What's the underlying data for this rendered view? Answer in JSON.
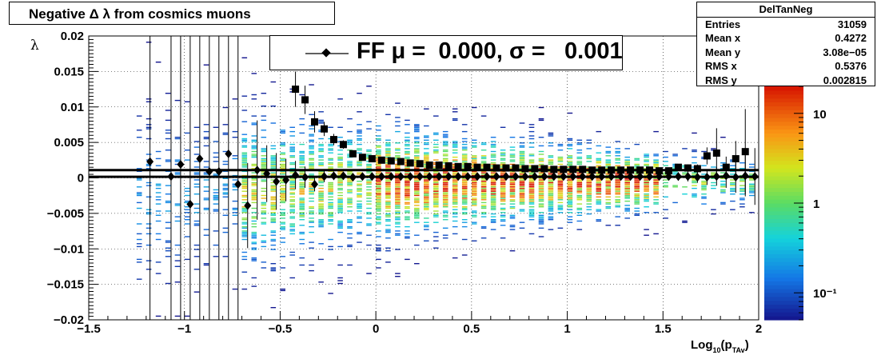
{
  "chart_data": {
    "type": "scatter",
    "title": "Negative Δ λ from cosmics muons",
    "xlabel": "Log10(pTAv)",
    "xlabel_parts": {
      "base": "Log",
      "sub1": "10",
      "mid": "(p",
      "sub2": "TAv",
      "end": ")"
    },
    "ylabel": "λ",
    "xlim": [
      -1.5,
      2.0
    ],
    "ylim": [
      -0.02,
      0.02
    ],
    "grid": true,
    "x_ticks": [
      "−1.5",
      "−1",
      "−0.5",
      "0",
      "0.5",
      "1",
      "1.5",
      "2"
    ],
    "x_tick_values": [
      -1.5,
      -1,
      -0.5,
      0,
      0.5,
      1,
      1.5,
      2
    ],
    "y_ticks": [
      "−0.02",
      "−0.015",
      "−0.01",
      "−0.005",
      "0",
      "0.005",
      "0.01",
      "0.015",
      "0.02"
    ],
    "y_tick_values": [
      -0.02,
      -0.015,
      -0.01,
      -0.005,
      0,
      0.005,
      0.01,
      0.015,
      0.02
    ],
    "colorbar": {
      "scale": "log",
      "range": [
        0.05,
        20
      ],
      "labels": [
        "10",
        "1",
        "10⁻¹"
      ],
      "label_values": [
        10,
        1,
        0.1
      ]
    },
    "fit_lines": [
      0.0011,
      0.00015
    ],
    "series": [
      {
        "name": "FF",
        "marker": "diamond",
        "x": [
          -1.18,
          -1.07,
          -1.02,
          -0.97,
          -0.92,
          -0.87,
          -0.82,
          -0.77,
          -0.72,
          -0.67,
          -0.62,
          -0.57,
          -0.52,
          -0.47,
          -0.42,
          -0.37,
          -0.32,
          -0.27,
          -0.22,
          -0.17,
          -0.12,
          -0.07,
          -0.02,
          0.03,
          0.08,
          0.13,
          0.18,
          0.23,
          0.28,
          0.33,
          0.38,
          0.43,
          0.48,
          0.53,
          0.58,
          0.63,
          0.68,
          0.73,
          0.78,
          0.83,
          0.88,
          0.93,
          0.98,
          1.03,
          1.08,
          1.13,
          1.18,
          1.23,
          1.28,
          1.33,
          1.38,
          1.43,
          1.48,
          1.53,
          1.58,
          1.63,
          1.68,
          1.73,
          1.78,
          1.83,
          1.88,
          1.93,
          1.98
        ],
        "y": [
          0.0023,
          0.0002,
          0.0019,
          -0.0037,
          0.0027,
          0.0009,
          0.0009,
          0.0034,
          -0.0009,
          -0.0039,
          0.0011,
          0.0006,
          -0.0005,
          -0.0003,
          0.0004,
          0.0001,
          -0.0009,
          0.0002,
          0.0003,
          0.0003,
          0.0001,
          0.0002,
          0.0002,
          0.0002,
          0.0002,
          0.0002,
          0.0002,
          0.0002,
          0.0002,
          0.0002,
          0.0002,
          0.0002,
          0.0002,
          0.0002,
          0.0002,
          0.0002,
          0.0002,
          0.0002,
          0.0002,
          0.0002,
          0.0002,
          0.0002,
          0.0002,
          0.0002,
          0.0002,
          0.0002,
          0.0002,
          0.0002,
          0.0002,
          0.0002,
          0.0002,
          0.0002,
          0.0002,
          0.0002,
          0.0002,
          0.0002,
          0.0001,
          0.0001,
          0.0002,
          0.0003,
          0.0001,
          0.0003,
          0.0002
        ],
        "yerr": [
          0.03,
          0.03,
          0.03,
          0.03,
          0.03,
          0.03,
          0.03,
          0.03,
          0.03,
          0.006,
          0.007,
          0.004,
          0.004,
          0.003,
          0.002,
          0.0015,
          0.001,
          0.0008,
          0.0006,
          0.0005,
          0.0004,
          0.0003,
          0.0003,
          0.0002,
          0.0002,
          0.0002,
          0.0002,
          0.0002,
          0.0002,
          0.0002,
          0.0002,
          0.0002,
          0.0002,
          0.0002,
          0.0002,
          0.0002,
          0.0002,
          0.0002,
          0.0002,
          0.0002,
          0.0002,
          0.0002,
          0.0002,
          0.0002,
          0.0002,
          0.0002,
          0.0002,
          0.0002,
          0.0003,
          0.0003,
          0.0003,
          0.0004,
          0.0004,
          0.0005,
          0.0006,
          0.0007,
          0.0008,
          0.0011,
          0.0013,
          0.0017,
          0.0022,
          0.0029,
          0.004
        ]
      },
      {
        "name": "",
        "marker": "square",
        "x": [
          -0.42,
          -0.37,
          -0.32,
          -0.27,
          -0.22,
          -0.17,
          -0.12,
          -0.07,
          -0.02,
          0.03,
          0.08,
          0.13,
          0.18,
          0.23,
          0.28,
          0.33,
          0.38,
          0.43,
          0.48,
          0.53,
          0.58,
          0.63,
          0.68,
          0.73,
          0.78,
          0.83,
          0.88,
          0.93,
          0.98,
          1.03,
          1.08,
          1.13,
          1.18,
          1.23,
          1.28,
          1.33,
          1.38,
          1.43,
          1.48,
          1.53,
          1.58,
          1.63,
          1.68,
          1.73,
          1.78,
          1.83,
          1.88,
          1.93
        ],
        "y": [
          0.0125,
          0.011,
          0.0079,
          0.0069,
          0.0054,
          0.0047,
          0.0034,
          0.0029,
          0.0027,
          0.0025,
          0.0024,
          0.0023,
          0.0021,
          0.002,
          0.0018,
          0.0018,
          0.0017,
          0.0016,
          0.0016,
          0.0015,
          0.0015,
          0.0014,
          0.0014,
          0.0014,
          0.0013,
          0.0013,
          0.0013,
          0.0012,
          0.0012,
          0.0012,
          0.0012,
          0.0011,
          0.0011,
          0.0011,
          0.0011,
          0.0011,
          0.0011,
          0.0011,
          0.001,
          0.001,
          0.0015,
          0.0014,
          0.0013,
          0.0031,
          0.0035,
          0.0015,
          0.0027,
          0.0037
        ],
        "yerr": [
          0.0025,
          0.002,
          0.0015,
          0.001,
          0.0008,
          0.0006,
          0.0005,
          0.0004,
          0.0003,
          0.0003,
          0.0003,
          0.0002,
          0.0002,
          0.0002,
          0.0002,
          0.0002,
          0.0002,
          0.0002,
          0.0002,
          0.0002,
          0.0002,
          0.0002,
          0.0002,
          0.0002,
          0.0002,
          0.0002,
          0.0002,
          0.0002,
          0.0002,
          0.0002,
          0.0002,
          0.0002,
          0.0002,
          0.0002,
          0.0002,
          0.0002,
          0.0002,
          0.0002,
          0.0003,
          0.0003,
          0.0004,
          0.0005,
          0.0006,
          0.0012,
          0.0035,
          0.0015,
          0.0025,
          0.006
        ]
      }
    ]
  },
  "stats": {
    "name": "DelTanNeg",
    "rows": [
      {
        "key": "Entries",
        "value": "31059"
      },
      {
        "key": "Mean x",
        "value": "0.4272"
      },
      {
        "key": "Mean y",
        "value": "3.08e−05"
      },
      {
        "key": "RMS x",
        "value": "0.5376"
      },
      {
        "key": "RMS y",
        "value": "0.002815"
      }
    ]
  },
  "fit_label": "FF μ =  0.000, σ =   0.001"
}
